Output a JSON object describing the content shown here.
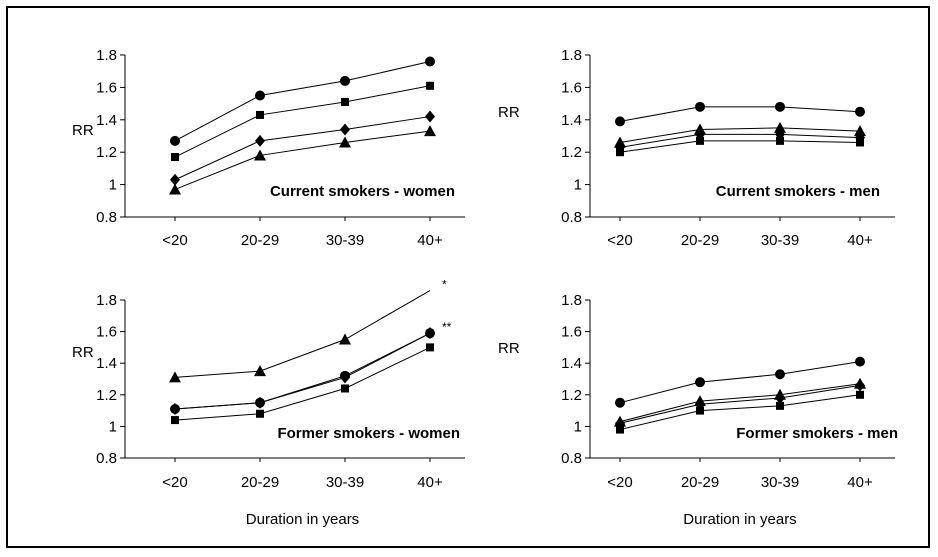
{
  "chart_data": [
    {
      "type": "line",
      "title": "Current smokers - women",
      "ylabel": "RR",
      "xlabel": "",
      "categories": [
        "<20",
        "20-29",
        "30-39",
        "40+"
      ],
      "ylim": [
        0.8,
        1.8
      ],
      "yticks": [
        "0.8",
        "1",
        "1.2",
        "1.4",
        "1.6",
        "1.8"
      ],
      "series": [
        {
          "marker": "circle",
          "values": [
            1.27,
            1.55,
            1.64,
            1.76
          ],
          "annotation": ""
        },
        {
          "marker": "square",
          "values": [
            1.17,
            1.43,
            1.51,
            1.61
          ],
          "annotation": ""
        },
        {
          "marker": "diamond",
          "values": [
            1.03,
            1.27,
            1.34,
            1.42
          ],
          "annotation": ""
        },
        {
          "marker": "triangle",
          "values": [
            0.97,
            1.18,
            1.26,
            1.33
          ],
          "annotation": ""
        }
      ]
    },
    {
      "type": "line",
      "title": "Current smokers - men",
      "ylabel": "RR",
      "xlabel": "",
      "categories": [
        "<20",
        "20-29",
        "30-39",
        "40+"
      ],
      "ylim": [
        0.8,
        1.8
      ],
      "yticks": [
        "0.8",
        "1",
        "1.2",
        "1.4",
        "1.6",
        "1.8"
      ],
      "series": [
        {
          "marker": "circle",
          "values": [
            1.39,
            1.48,
            1.48,
            1.45
          ],
          "annotation": ""
        },
        {
          "marker": "triangle",
          "values": [
            1.26,
            1.34,
            1.35,
            1.33
          ],
          "annotation": ""
        },
        {
          "marker": "diamond",
          "values": [
            1.23,
            1.31,
            1.31,
            1.29
          ],
          "annotation": ""
        },
        {
          "marker": "square",
          "values": [
            1.2,
            1.27,
            1.27,
            1.26
          ],
          "annotation": ""
        }
      ]
    },
    {
      "type": "line",
      "title": "Former smokers - women",
      "ylabel": "RR",
      "xlabel": "Duration in years",
      "categories": [
        "<20",
        "20-29",
        "30-39",
        "40+"
      ],
      "ylim": [
        0.8,
        1.8
      ],
      "yticks": [
        "0.8",
        "1",
        "1.2",
        "1.4",
        "1.6",
        "1.8"
      ],
      "series": [
        {
          "marker": "triangle",
          "values": [
            1.31,
            1.35,
            1.55,
            1.86
          ],
          "annotation": "*",
          "hide_last": true
        },
        {
          "marker": "circle",
          "values": [
            1.11,
            1.15,
            1.32,
            1.59
          ],
          "annotation": ""
        },
        {
          "marker": "diamond",
          "values": [
            1.11,
            1.15,
            1.31,
            1.59
          ],
          "annotation": "**"
        },
        {
          "marker": "square",
          "values": [
            1.04,
            1.08,
            1.24,
            1.5
          ],
          "annotation": ""
        }
      ]
    },
    {
      "type": "line",
      "title": "Former smokers - men",
      "ylabel": "RR",
      "xlabel": "Duration in years",
      "categories": [
        "<20",
        "20-29",
        "30-39",
        "40+"
      ],
      "ylim": [
        0.8,
        1.8
      ],
      "yticks": [
        "0.8",
        "1",
        "1.2",
        "1.4",
        "1.6",
        "1.8"
      ],
      "series": [
        {
          "marker": "circle",
          "values": [
            1.15,
            1.28,
            1.33,
            1.41
          ],
          "annotation": ""
        },
        {
          "marker": "triangle",
          "values": [
            1.03,
            1.16,
            1.2,
            1.27
          ],
          "annotation": ""
        },
        {
          "marker": "diamond",
          "values": [
            1.02,
            1.14,
            1.18,
            1.26
          ],
          "annotation": ""
        },
        {
          "marker": "square",
          "values": [
            0.98,
            1.1,
            1.13,
            1.2
          ],
          "annotation": ""
        }
      ]
    }
  ],
  "colors": {
    "line": "#000000",
    "marker": "#000000",
    "frame": "#000000"
  }
}
